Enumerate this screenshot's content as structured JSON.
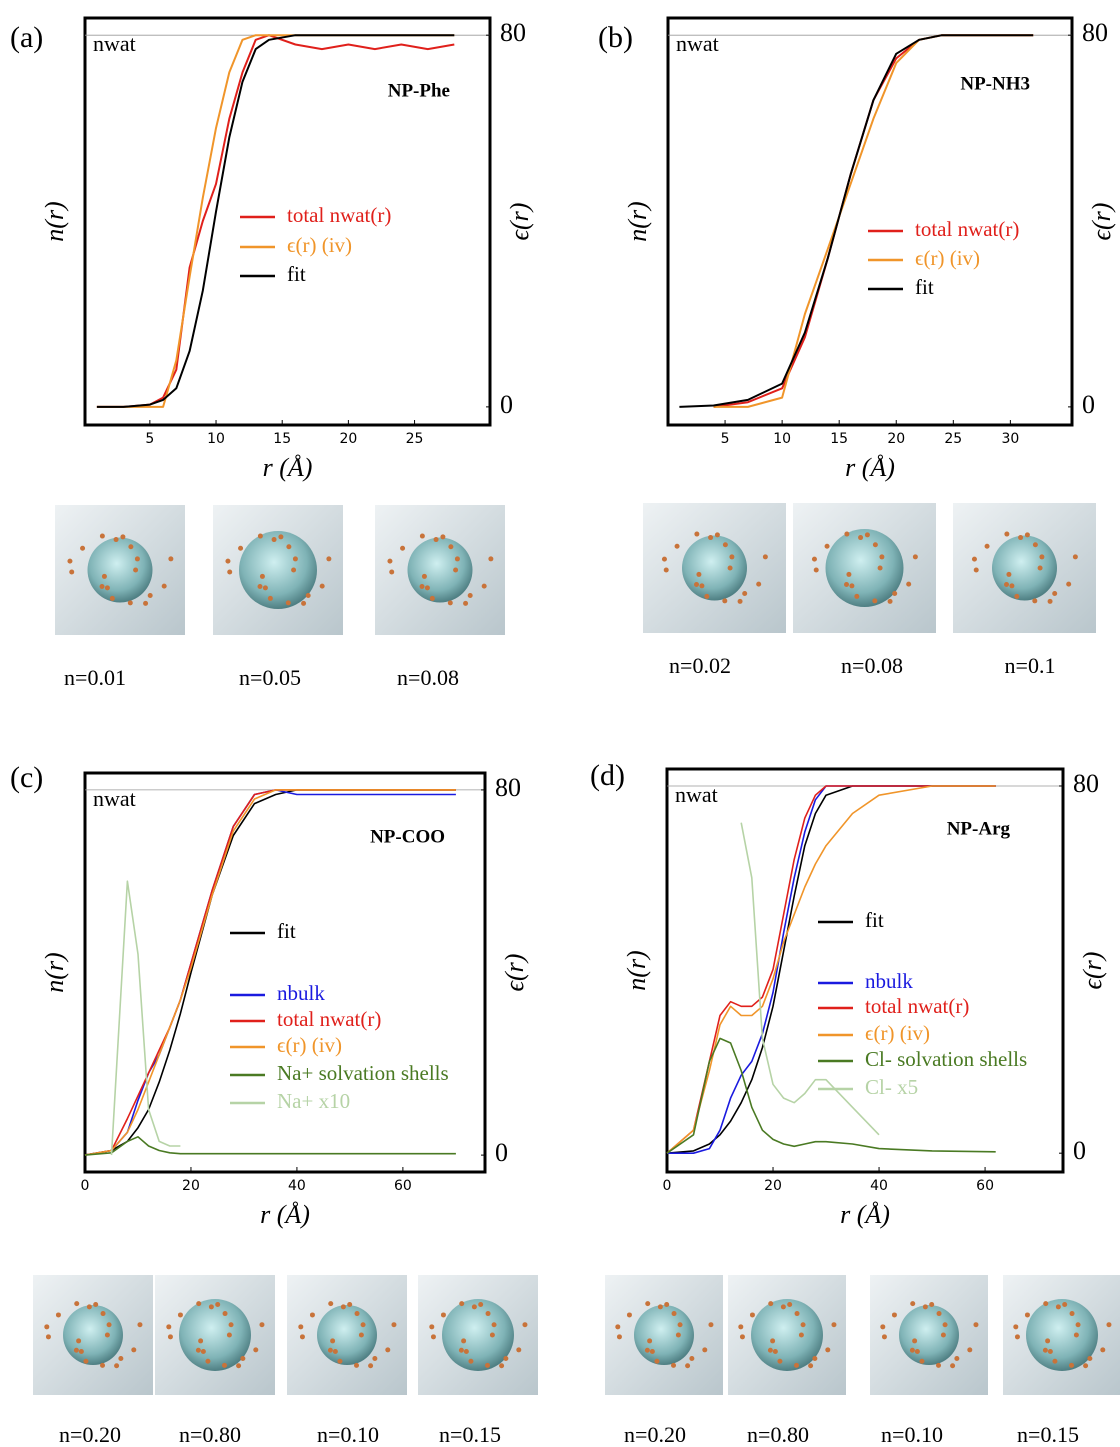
{
  "chart_data": [
    {
      "type": "line",
      "panel_label": "(a)",
      "title": "NP-Phe",
      "annotation": "nwat",
      "reference_value": 80,
      "x_label": "r (Å)",
      "y_label": "n(r)",
      "y2_label": "ϵ(r)",
      "x": [
        1,
        3,
        5,
        6,
        7,
        8,
        9,
        10,
        11,
        12,
        13,
        14,
        16,
        18,
        20,
        22,
        24,
        26,
        28
      ],
      "series": [
        {
          "name": "total nwat(r)",
          "color": "#e0201b",
          "axis": "y2",
          "values": [
            0,
            0,
            0.5,
            2,
            8,
            30,
            40,
            48,
            62,
            72,
            79,
            80,
            78,
            77,
            78,
            77,
            78,
            77,
            78
          ]
        },
        {
          "name": "ϵ(r) (iv)",
          "color": "#f0952a",
          "axis": "y2",
          "values": [
            0,
            0,
            0,
            0,
            10,
            28,
            45,
            60,
            72,
            79,
            80,
            80,
            80,
            80,
            80,
            80,
            80,
            80,
            80
          ]
        },
        {
          "name": "fit",
          "color": "#000000",
          "axis": "y2",
          "values": [
            0,
            0,
            0.5,
            1.5,
            4,
            12,
            25,
            42,
            58,
            70,
            77,
            79,
            80,
            80,
            80,
            80,
            80,
            80,
            80
          ]
        }
      ],
      "xlim": [
        0.1,
        30.7
      ],
      "xticks": [
        5,
        10,
        15,
        20,
        25
      ],
      "y2lim": [
        -3.9,
        83.7
      ],
      "y2ticks": [
        0,
        80
      ],
      "snapshot_labels": [
        "n=0.01",
        "n=0.05",
        "n=0.08"
      ]
    },
    {
      "type": "line",
      "panel_label": "(b)",
      "title": "NP-NH3",
      "annotation": "nwat",
      "reference_value": 80,
      "x_label": "r (Å)",
      "y_label": "n(r)",
      "y2_label": "ϵ(r)",
      "x": [
        1,
        4,
        7,
        10,
        12,
        14,
        16,
        18,
        20,
        22,
        24,
        26,
        28,
        30,
        32
      ],
      "series": [
        {
          "name": "total nwat(r)",
          "color": "#e0201b",
          "axis": "y2",
          "values": [
            null,
            0,
            1,
            4,
            15,
            32,
            50,
            66,
            75,
            79,
            80,
            80,
            80,
            80,
            80
          ]
        },
        {
          "name": "ϵ(r) (iv)",
          "color": "#f0952a",
          "axis": "y2",
          "values": [
            null,
            0,
            0,
            2,
            20,
            34,
            48,
            62,
            74,
            79,
            80,
            80,
            80,
            80,
            80
          ]
        },
        {
          "name": "fit",
          "color": "#000000",
          "axis": "y2",
          "values": [
            0,
            0.3,
            1.5,
            5,
            16,
            32,
            50,
            66,
            76,
            79,
            80,
            80,
            80,
            80,
            80
          ]
        }
      ],
      "xlim": [
        0,
        35.4
      ],
      "xticks": [
        5,
        10,
        15,
        20,
        25,
        30
      ],
      "y2lim": [
        -3.9,
        83.7
      ],
      "y2ticks": [
        0,
        80
      ],
      "snapshot_labels": [
        "n=0.02",
        "n=0.08",
        "n=0.1"
      ]
    },
    {
      "type": "line",
      "panel_label": "(c)",
      "title": "NP-COO",
      "annotation": "nwat",
      "reference_value": 80,
      "x_label": "r (Å)",
      "y_label": "n(r)",
      "y2_label": "ϵ(r)",
      "x": [
        0,
        5,
        8,
        10,
        12,
        14,
        16,
        18,
        20,
        24,
        28,
        32,
        36,
        40,
        50,
        60,
        70
      ],
      "series": [
        {
          "name": "fit",
          "color": "#000000",
          "axis": "y2",
          "values": [
            0,
            1,
            3,
            6,
            10,
            16,
            23,
            31,
            40,
            57,
            70,
            77,
            79,
            80,
            80,
            80,
            80
          ]
        },
        {
          "name": "nbulk",
          "color": "#1a1adf",
          "axis": "y2",
          "values": [
            0,
            1,
            5,
            12,
            18,
            22,
            28,
            34,
            42,
            58,
            72,
            79,
            80,
            79,
            79,
            79,
            79
          ]
        },
        {
          "name": "total nwat(r)",
          "color": "#e0201b",
          "axis": "y2",
          "values": [
            0,
            1,
            8,
            13,
            18,
            23,
            28,
            34,
            42,
            58,
            72,
            79,
            80,
            80,
            80,
            80,
            80
          ]
        },
        {
          "name": "ϵ(r) (iv)",
          "color": "#f0952a",
          "axis": "y2",
          "values": [
            0,
            1,
            5,
            10,
            16,
            22,
            28,
            34,
            41,
            57,
            71,
            78,
            80,
            80,
            80,
            80,
            80
          ]
        },
        {
          "name": "Na+ solvation shells",
          "color": "#4a7a23",
          "axis": "y2",
          "values": [
            0,
            0.5,
            3,
            4,
            2,
            1,
            0.5,
            0.3,
            0.3,
            0.3,
            0.3,
            0.3,
            0.3,
            0.3,
            0.3,
            0.3,
            0.3
          ]
        },
        {
          "name": "Na+ x10",
          "color": "#b6d3a6",
          "axis": "y2",
          "values": [
            null,
            0,
            60,
            44,
            10,
            3,
            2,
            2,
            null,
            null,
            null,
            null,
            null,
            null,
            null,
            null,
            null
          ]
        }
      ],
      "xlim": [
        0,
        75.5
      ],
      "xticks": [
        0,
        20,
        40,
        60
      ],
      "y2lim": [
        -3.7,
        83.7
      ],
      "y2ticks": [
        0,
        80
      ],
      "snapshot_labels": [
        "n=0.20",
        "n=0.80",
        "n=0.10",
        "n=0.15"
      ]
    },
    {
      "type": "line",
      "panel_label": "(d)",
      "title": "NP-Arg",
      "annotation": "nwat",
      "reference_value": 80,
      "x_label": "r (Å)",
      "y_label": "n(r)",
      "y2_label": "ϵ(r)",
      "x": [
        0,
        5,
        8,
        10,
        12,
        14,
        16,
        18,
        20,
        22,
        24,
        26,
        28,
        30,
        35,
        40,
        50,
        62
      ],
      "series": [
        {
          "name": "fit",
          "color": "#000000",
          "axis": "y2",
          "values": [
            0,
            0.5,
            2,
            4,
            7,
            11,
            16,
            23,
            32,
            44,
            56,
            67,
            74,
            78,
            80,
            80,
            80,
            80
          ]
        },
        {
          "name": "nbulk",
          "color": "#1a1adf",
          "axis": "y2",
          "values": [
            0,
            0,
            1,
            5,
            12,
            17,
            20,
            26,
            35,
            48,
            60,
            70,
            77,
            80,
            80,
            80,
            80,
            80
          ]
        },
        {
          "name": "total nwat(r)",
          "color": "#e0201b",
          "axis": "y2",
          "values": [
            0,
            5,
            20,
            30,
            33,
            32,
            32,
            34,
            40,
            52,
            64,
            73,
            78,
            80,
            80,
            80,
            80,
            80
          ]
        },
        {
          "name": "ϵ(r) (iv)",
          "color": "#f0952a",
          "axis": "y2",
          "values": [
            0,
            5,
            18,
            28,
            32,
            30,
            30,
            32,
            38,
            46,
            52,
            58,
            63,
            67,
            74,
            78,
            80,
            80
          ]
        },
        {
          "name": "Cl- solvation shells",
          "color": "#4a7a23",
          "axis": "y2",
          "values": [
            0,
            4,
            20,
            25,
            24,
            18,
            10,
            5,
            3,
            2,
            1.5,
            2,
            2.5,
            2.5,
            2,
            1,
            0.5,
            0.3
          ]
        },
        {
          "name": "Cl- x5",
          "color": "#b6d3a6",
          "axis": "y2",
          "values": [
            null,
            null,
            null,
            null,
            null,
            72,
            60,
            25,
            15,
            12,
            11,
            13,
            16,
            16,
            10,
            4,
            null,
            null
          ]
        }
      ],
      "xlim": [
        0,
        74.7
      ],
      "xticks": [
        0,
        20,
        40,
        60
      ],
      "y2lim": [
        -4.1,
        83.7
      ],
      "y2ticks": [
        0,
        80
      ],
      "snapshot_labels": [
        "n=0.20",
        "n=0.80",
        "n=0.10",
        "n=0.15"
      ]
    }
  ]
}
